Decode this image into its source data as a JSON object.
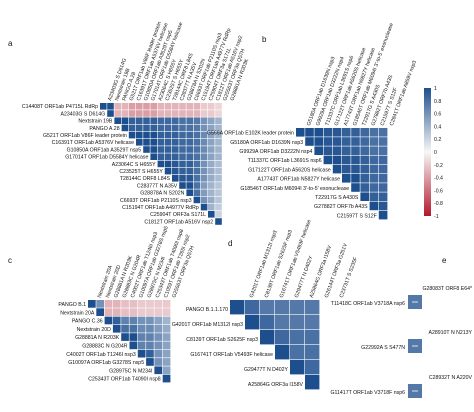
{
  "panels": [
    {
      "id": "a",
      "label": "a",
      "labels": [
        "C14408T ORF1ab P4715L RdRp",
        "A23403G S D614G",
        "Nextstrain 19B",
        "PANGO A.28",
        "G521T ORF1ab V86F leader protein",
        "C16391T ORF1ab A5376V helicase",
        "G10850A ORF1ab A3529T nsp5",
        "G17014T ORF1ab D5584Y helicase",
        "A23064C S H655Y",
        "C23525T S H655Y",
        "T28144C ORF8 L84S",
        "C28377T N A35V",
        "G28878A N S202N",
        "C6693T ORF1ab P2110S nsp3",
        "C15194T ORF1ab A4977V RdRp",
        "C25904T ORF3a S171L",
        "C1812T ORF1ab A516V nsp2"
      ],
      "extra_top": [
        "G25563T ORF3a Q57H",
        "G28881A N R203K"
      ],
      "corr": [
        [
          1,
          1,
          -0.3,
          -0.3,
          -0.4,
          -0.4,
          -0.4,
          -0.4,
          -0.3,
          -0.3,
          -0.3,
          -0.3,
          -0.3,
          -0.3,
          -0.2,
          -0.2,
          -0.15
        ],
        [
          1,
          1,
          -0.3,
          -0.3,
          -0.4,
          -0.4,
          -0.4,
          -0.4,
          -0.3,
          -0.3,
          -0.3,
          -0.3,
          -0.3,
          -0.3,
          -0.2,
          -0.2,
          -0.15
        ],
        [
          -0.3,
          -0.3,
          1,
          1,
          0.9,
          0.9,
          0.9,
          0.9,
          0.85,
          0.85,
          0.85,
          0.8,
          0.8,
          0.75,
          0.6,
          0.5,
          0.4
        ],
        [
          -0.3,
          -0.3,
          1,
          1,
          0.9,
          0.9,
          0.9,
          0.9,
          0.85,
          0.85,
          0.85,
          0.8,
          0.8,
          0.75,
          0.6,
          0.5,
          0.4
        ],
        [
          -0.4,
          -0.4,
          0.9,
          0.9,
          1,
          1,
          1,
          1,
          0.9,
          0.9,
          0.9,
          0.85,
          0.85,
          0.8,
          0.65,
          0.5,
          0.4
        ],
        [
          -0.4,
          -0.4,
          0.9,
          0.9,
          1,
          1,
          1,
          1,
          0.9,
          0.9,
          0.9,
          0.85,
          0.85,
          0.8,
          0.65,
          0.5,
          0.4
        ],
        [
          -0.4,
          -0.4,
          0.9,
          0.9,
          1,
          1,
          1,
          1,
          0.9,
          0.9,
          0.9,
          0.85,
          0.85,
          0.8,
          0.65,
          0.5,
          0.4
        ],
        [
          -0.4,
          -0.4,
          0.9,
          0.9,
          1,
          1,
          1,
          1,
          0.9,
          0.9,
          0.9,
          0.85,
          0.85,
          0.8,
          0.65,
          0.5,
          0.4
        ],
        [
          -0.3,
          -0.3,
          0.85,
          0.85,
          0.9,
          0.9,
          0.9,
          0.9,
          1,
          1,
          0.95,
          0.9,
          0.9,
          0.8,
          0.6,
          0.45,
          0.35
        ],
        [
          -0.3,
          -0.3,
          0.85,
          0.85,
          0.9,
          0.9,
          0.9,
          0.9,
          1,
          1,
          0.95,
          0.9,
          0.9,
          0.8,
          0.6,
          0.45,
          0.35
        ],
        [
          -0.3,
          -0.3,
          0.85,
          0.85,
          0.9,
          0.9,
          0.9,
          0.9,
          0.95,
          0.95,
          1,
          0.95,
          0.95,
          0.8,
          0.6,
          0.45,
          0.35
        ],
        [
          -0.3,
          -0.3,
          0.8,
          0.8,
          0.85,
          0.85,
          0.85,
          0.85,
          0.9,
          0.9,
          0.95,
          1,
          1,
          0.8,
          0.55,
          0.4,
          0.3
        ],
        [
          -0.3,
          -0.3,
          0.8,
          0.8,
          0.85,
          0.85,
          0.85,
          0.85,
          0.9,
          0.9,
          0.95,
          1,
          1,
          0.8,
          0.55,
          0.4,
          0.3
        ],
        [
          -0.3,
          -0.3,
          0.75,
          0.75,
          0.8,
          0.8,
          0.8,
          0.8,
          0.8,
          0.8,
          0.8,
          0.8,
          0.8,
          1,
          0.6,
          0.45,
          0.3
        ],
        [
          -0.2,
          -0.2,
          0.6,
          0.6,
          0.65,
          0.65,
          0.65,
          0.65,
          0.6,
          0.6,
          0.6,
          0.55,
          0.55,
          0.6,
          1,
          0.4,
          0.25
        ],
        [
          -0.2,
          -0.2,
          0.5,
          0.5,
          0.5,
          0.5,
          0.5,
          0.5,
          0.45,
          0.45,
          0.45,
          0.4,
          0.4,
          0.45,
          0.4,
          1,
          0.2
        ],
        [
          -0.15,
          -0.15,
          0.4,
          0.4,
          0.4,
          0.4,
          0.4,
          0.4,
          0.35,
          0.35,
          0.35,
          0.3,
          0.3,
          0.3,
          0.25,
          0.2,
          1
        ]
      ]
    },
    {
      "id": "b",
      "label": "b",
      "labels": [
        "G569A ORF1ab E102K leader protein",
        "G5180A ORF1ab D1639N nsp3",
        "G9929A ORF1ab D3222N nsp4",
        "T11337C ORF1ab L3691S nsp6",
        "G17122T ORF1ab A5620S helicase",
        "A17743T ORF1ab N5827Y helicase",
        "G18546T ORF1ab M6094I 3'-to-5' exonuclease",
        "T22917G S A430S",
        "G27882T ORF7b A43S",
        "C21597T S S12F"
      ],
      "extra_top": [
        "C2841T ORF1ab A859V nsp3"
      ],
      "corr": [
        [
          1,
          1,
          1,
          0.95,
          0.95,
          0.9,
          0.9,
          0.85,
          0.8,
          0.8
        ],
        [
          1,
          1,
          1,
          0.95,
          0.95,
          0.9,
          0.9,
          0.85,
          0.8,
          0.8
        ],
        [
          1,
          1,
          1,
          0.95,
          0.95,
          0.9,
          0.9,
          0.85,
          0.8,
          0.8
        ],
        [
          0.95,
          0.95,
          0.95,
          1,
          1,
          0.95,
          0.95,
          0.9,
          0.85,
          0.85
        ],
        [
          0.95,
          0.95,
          0.95,
          1,
          1,
          0.95,
          0.95,
          0.9,
          0.85,
          0.85
        ],
        [
          0.9,
          0.9,
          0.9,
          0.95,
          0.95,
          1,
          1,
          0.9,
          0.85,
          0.85
        ],
        [
          0.9,
          0.9,
          0.9,
          0.95,
          0.95,
          1,
          1,
          0.9,
          0.85,
          0.85
        ],
        [
          0.85,
          0.85,
          0.85,
          0.9,
          0.9,
          0.9,
          0.9,
          1,
          0.9,
          0.9
        ],
        [
          0.8,
          0.8,
          0.8,
          0.85,
          0.85,
          0.85,
          0.85,
          0.9,
          1,
          0.95
        ],
        [
          0.8,
          0.8,
          0.8,
          0.85,
          0.85,
          0.85,
          0.85,
          0.9,
          0.95,
          1
        ]
      ]
    },
    {
      "id": "c",
      "label": "c",
      "labels": [
        "PANGO B.1",
        "Nextstrain 20A",
        "PANGO C.36",
        "Nextstrain 20D",
        "G28881A N R203K",
        "G28883C N G204R",
        "C4002T ORF1ab T1246I nsp3",
        "G10097A ORF1ab G3278S nsp5",
        "G28975C N M234I",
        "C25343T ORF1ab T4090I nsp8"
      ],
      "top_labels": [
        "Nextstrain 20A",
        "Nextstrain 20D",
        "G28881A N R203K",
        "G28883C N G204R",
        "C4002T ORF1ab T1246I nsp3",
        "G10097A ORF1ab G3278S nsp5",
        "G28975C N M234I",
        "C25343T ORF1ab T4090I nsp8",
        "C1059T ORF1ab T265I nsp2",
        "G25563T ORF3a Q57H"
      ],
      "corr": [
        [
          1,
          0.6,
          -0.3,
          -0.3,
          -0.25,
          -0.25,
          -0.2,
          -0.2,
          -0.2,
          -0.2
        ],
        [
          0.6,
          1,
          -0.3,
          -0.3,
          -0.25,
          -0.25,
          -0.2,
          -0.2,
          -0.2,
          -0.2
        ],
        [
          -0.3,
          -0.3,
          1,
          0.9,
          0.7,
          0.7,
          0.6,
          0.6,
          0.5,
          0.4
        ],
        [
          -0.3,
          -0.3,
          0.9,
          1,
          0.8,
          0.8,
          0.65,
          0.65,
          0.55,
          0.45
        ],
        [
          -0.25,
          -0.25,
          0.7,
          0.8,
          1,
          1,
          0.7,
          0.7,
          0.6,
          0.5
        ],
        [
          -0.25,
          -0.25,
          0.7,
          0.8,
          1,
          1,
          0.7,
          0.7,
          0.6,
          0.5
        ],
        [
          -0.2,
          -0.2,
          0.6,
          0.65,
          0.7,
          0.7,
          1,
          0.9,
          0.6,
          0.5
        ],
        [
          -0.2,
          -0.2,
          0.6,
          0.65,
          0.7,
          0.7,
          0.9,
          1,
          0.6,
          0.5
        ],
        [
          -0.2,
          -0.2,
          0.5,
          0.55,
          0.6,
          0.6,
          0.6,
          0.6,
          1,
          0.5
        ],
        [
          -0.2,
          -0.2,
          0.4,
          0.45,
          0.5,
          0.5,
          0.5,
          0.5,
          0.5,
          1
        ]
      ]
    },
    {
      "id": "d",
      "label": "d",
      "labels": [
        "PANGO B.1.1.170",
        "G4201T ORF1ab M1312I nsp3",
        "C8139T ORF1ab S2625F nsp3",
        "G16741T ORF1ab V5493F helicase",
        "G29477T N D402Y",
        "A25864G ORF3a I158V"
      ],
      "top_labels": [
        "G4201T ORF1ab M1312I nsp3",
        "C8139T ORF1ab S2625F nsp3",
        "G16741T ORF1ab V5493F helicase",
        "G29477T N D402Y",
        "A25864G ORF3a I158V",
        "G26144T ORF3a G251V",
        "C23731T S S235F"
      ],
      "corr": [
        [
          1,
          0.85,
          0.75,
          0.75,
          0.75,
          0.75
        ],
        [
          0.85,
          1,
          0.85,
          0.75,
          0.75,
          0.75
        ],
        [
          0.75,
          0.85,
          1,
          0.85,
          0.8,
          0.8
        ],
        [
          0.75,
          0.75,
          0.85,
          1,
          0.8,
          0.8
        ],
        [
          0.75,
          0.75,
          0.8,
          0.8,
          1,
          0.85
        ],
        [
          0.75,
          0.75,
          0.8,
          0.8,
          0.85,
          1
        ]
      ]
    },
    {
      "id": "e",
      "label": "e",
      "pairs": [
        {
          "top": "G28083T ORF8 E64*",
          "bottom": "T11418C ORF1ab V3718A nsp6",
          "r": 0.75
        },
        {
          "top": "A28910T N N213Y",
          "bottom": "G22992A S S477N",
          "r": 0.75
        },
        {
          "top": "C28932T N A220V",
          "bottom": "G11417T ORF1ab V3718F nsp6",
          "r": 0.75
        }
      ]
    }
  ],
  "colorbar": {
    "ticks": [
      "1",
      "0.8",
      "0.6",
      "0.4",
      "0.2",
      "0",
      "-0.2",
      "-0.4",
      "-0.6",
      "-0.8",
      "-1"
    ],
    "colors": {
      "pos": "#1d4f8f",
      "mid": "#f7f7f7",
      "neg": "#b2182b"
    }
  },
  "chart_data": {
    "type": "heatmap",
    "description_values": "pairwise correlation coefficients between SARS-CoV-2 mutations and lineages, panels a–e; see panels[].corr",
    "value_range": [
      -1,
      1
    ]
  }
}
